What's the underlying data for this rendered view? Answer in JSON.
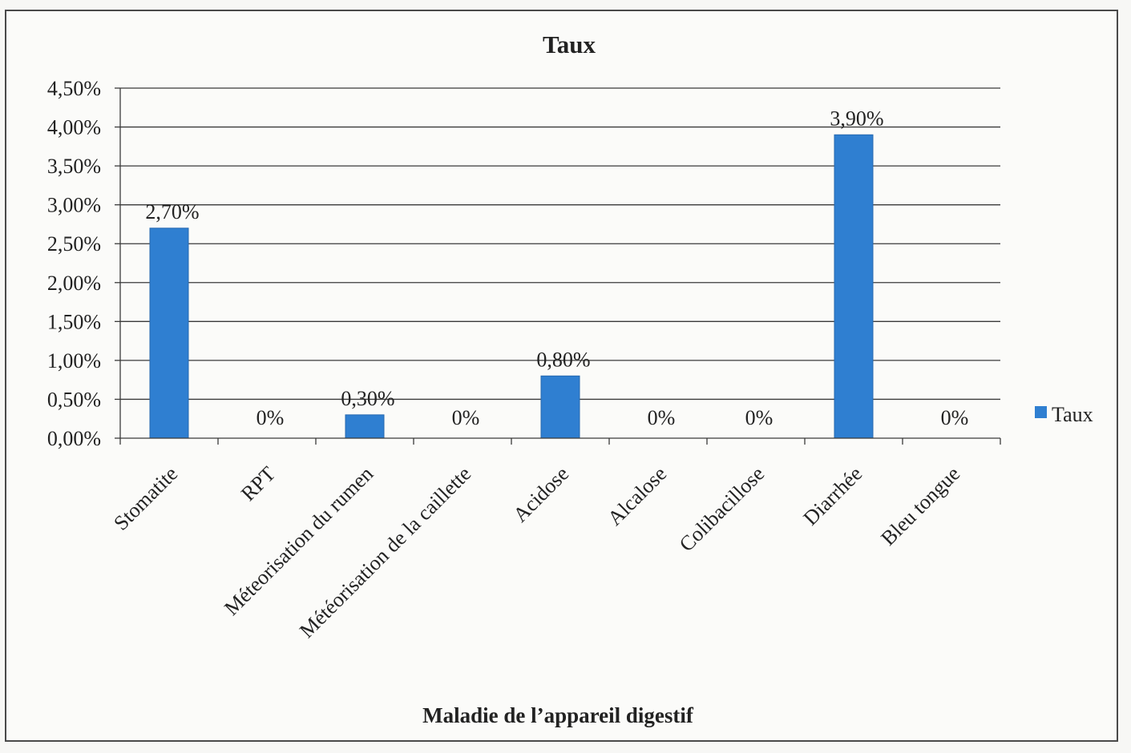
{
  "chart_data": {
    "type": "bar",
    "title": "Taux",
    "xlabel": "Maladie de l’appareil digestif",
    "ylabel": "",
    "ylim": [
      0,
      4.5
    ],
    "yticks": [
      0,
      0.5,
      1,
      1.5,
      2,
      2.5,
      3,
      3.5,
      4,
      4.5
    ],
    "ytick_labels": [
      "0,00%",
      "0,50%",
      "1,00%",
      "1,50%",
      "2,00%",
      "2,50%",
      "3,00%",
      "3,50%",
      "4,00%",
      "4,50%"
    ],
    "categories": [
      "Stomatite",
      "RPT",
      "Méteorisation du rumen",
      "Météorisation de la caillette",
      "Acidose",
      "Alcalose",
      "Colibacillose",
      "Diarrhée",
      "Bleu tongue"
    ],
    "series": [
      {
        "name": "Taux",
        "values": [
          2.7,
          0,
          0.3,
          0,
          0.8,
          0,
          0,
          3.9,
          0
        ],
        "labels": [
          "2,70%",
          "0%",
          "0,30%",
          "0%",
          "0,80%",
          "0%",
          "0%",
          "3,90%",
          "0%"
        ],
        "color": "#2f7fd1"
      }
    ],
    "grid": true,
    "legend": "right"
  }
}
